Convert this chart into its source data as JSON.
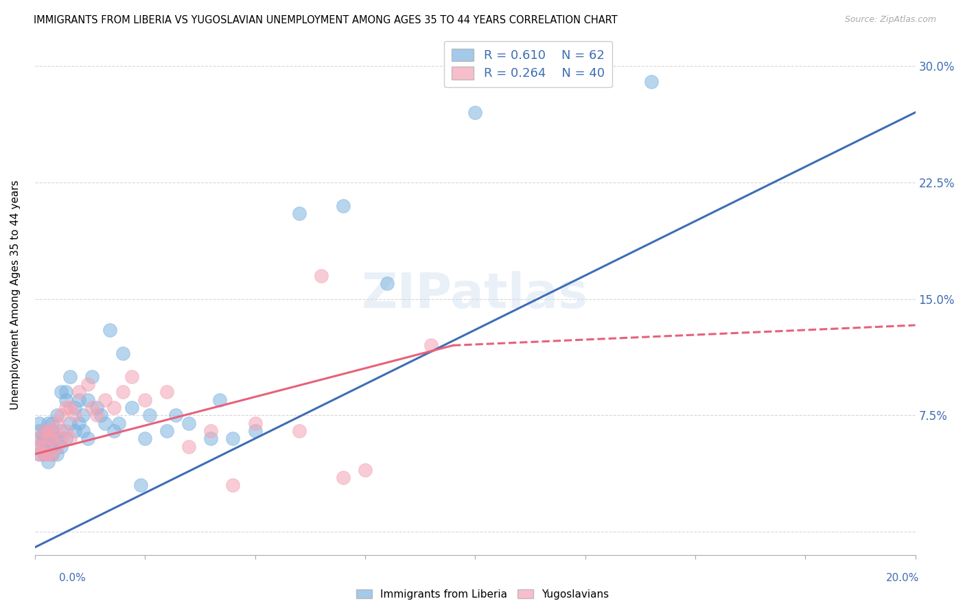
{
  "title": "IMMIGRANTS FROM LIBERIA VS YUGOSLAVIAN UNEMPLOYMENT AMONG AGES 35 TO 44 YEARS CORRELATION CHART",
  "source": "Source: ZipAtlas.com",
  "ylabel": "Unemployment Among Ages 35 to 44 years",
  "right_yticklabels": [
    "",
    "7.5%",
    "15.0%",
    "22.5%",
    "30.0%"
  ],
  "right_ytick_vals": [
    0.0,
    0.075,
    0.15,
    0.225,
    0.3
  ],
  "xlim": [
    0.0,
    0.2
  ],
  "ylim": [
    -0.015,
    0.32
  ],
  "legend1_r": "0.610",
  "legend1_n": "62",
  "legend2_r": "0.264",
  "legend2_n": "40",
  "legend_bottom_label1": "Immigrants from Liberia",
  "legend_bottom_label2": "Yugoslavians",
  "blue_color": "#7EB3E0",
  "pink_color": "#F4A3B5",
  "trend_blue_color": "#3E6DB5",
  "trend_pink_color": "#E8607A",
  "watermark": "ZIPatlas",
  "blue_scatter_x": [
    0.001,
    0.001,
    0.001,
    0.001,
    0.001,
    0.002,
    0.002,
    0.002,
    0.002,
    0.002,
    0.003,
    0.003,
    0.003,
    0.003,
    0.004,
    0.004,
    0.004,
    0.004,
    0.004,
    0.005,
    0.005,
    0.005,
    0.006,
    0.006,
    0.006,
    0.007,
    0.007,
    0.007,
    0.008,
    0.008,
    0.009,
    0.009,
    0.01,
    0.01,
    0.011,
    0.011,
    0.012,
    0.012,
    0.013,
    0.014,
    0.015,
    0.016,
    0.017,
    0.018,
    0.019,
    0.02,
    0.022,
    0.024,
    0.025,
    0.026,
    0.03,
    0.032,
    0.035,
    0.04,
    0.042,
    0.045,
    0.05,
    0.06,
    0.07,
    0.08,
    0.1,
    0.14
  ],
  "blue_scatter_y": [
    0.055,
    0.06,
    0.065,
    0.05,
    0.07,
    0.06,
    0.055,
    0.065,
    0.05,
    0.06,
    0.06,
    0.055,
    0.045,
    0.07,
    0.06,
    0.065,
    0.055,
    0.05,
    0.07,
    0.075,
    0.06,
    0.05,
    0.09,
    0.065,
    0.055,
    0.09,
    0.085,
    0.06,
    0.1,
    0.07,
    0.08,
    0.065,
    0.085,
    0.07,
    0.065,
    0.075,
    0.085,
    0.06,
    0.1,
    0.08,
    0.075,
    0.07,
    0.13,
    0.065,
    0.07,
    0.115,
    0.08,
    0.03,
    0.06,
    0.075,
    0.065,
    0.075,
    0.07,
    0.06,
    0.085,
    0.06,
    0.065,
    0.205,
    0.21,
    0.16,
    0.27,
    0.29
  ],
  "pink_scatter_x": [
    0.001,
    0.001,
    0.001,
    0.002,
    0.002,
    0.002,
    0.003,
    0.003,
    0.003,
    0.004,
    0.004,
    0.004,
    0.005,
    0.005,
    0.006,
    0.006,
    0.007,
    0.007,
    0.008,
    0.008,
    0.009,
    0.01,
    0.012,
    0.013,
    0.014,
    0.016,
    0.018,
    0.02,
    0.022,
    0.025,
    0.03,
    0.035,
    0.04,
    0.045,
    0.05,
    0.06,
    0.065,
    0.07,
    0.075,
    0.09
  ],
  "pink_scatter_y": [
    0.055,
    0.06,
    0.05,
    0.055,
    0.065,
    0.05,
    0.06,
    0.05,
    0.065,
    0.06,
    0.05,
    0.065,
    0.055,
    0.07,
    0.075,
    0.06,
    0.08,
    0.065,
    0.08,
    0.06,
    0.075,
    0.09,
    0.095,
    0.08,
    0.075,
    0.085,
    0.08,
    0.09,
    0.1,
    0.085,
    0.09,
    0.055,
    0.065,
    0.03,
    0.07,
    0.065,
    0.165,
    0.035,
    0.04,
    0.12
  ],
  "blue_line_x": [
    0.0,
    0.2
  ],
  "blue_line_y": [
    -0.01,
    0.27
  ],
  "pink_solid_line_x": [
    0.0,
    0.095
  ],
  "pink_solid_line_y": [
    0.05,
    0.12
  ],
  "pink_dash_line_x": [
    0.095,
    0.2
  ],
  "pink_dash_line_y": [
    0.12,
    0.133
  ]
}
